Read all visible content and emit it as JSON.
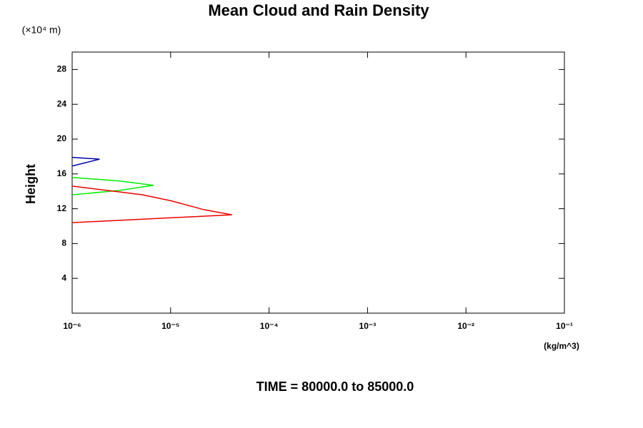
{
  "chart_data": {
    "type": "line",
    "title": "Mean Cloud and Rain Density",
    "y_unit": "(×10⁴ m)",
    "y_label": "Height",
    "x_label": "(kg/m^3)",
    "annotation": "TIME = 80000.0 to 85000.0",
    "xscale": "log",
    "xlim": [
      1e-06,
      0.1
    ],
    "xticks": [
      {
        "value": 1e-06,
        "label": "10⁻⁶"
      },
      {
        "value": 1e-05,
        "label": "10⁻⁵"
      },
      {
        "value": 0.0001,
        "label": "10⁻⁴"
      },
      {
        "value": 0.001,
        "label": "10⁻³"
      },
      {
        "value": 0.01,
        "label": "10⁻²"
      },
      {
        "value": 0.1,
        "label": "10⁻¹"
      }
    ],
    "ylim": [
      0,
      30
    ],
    "yticks": [
      4,
      8,
      12,
      16,
      20,
      24,
      28
    ],
    "series": [
      {
        "color": "#0000aa",
        "x": [
          1e-06,
          1.9e-06,
          1e-06
        ],
        "values": [
          17.9,
          17.7,
          16.9
        ]
      },
      {
        "color": "#00ee00",
        "x": [
          1e-06,
          3e-06,
          6.7e-06,
          3e-06,
          1e-06
        ],
        "values": [
          15.6,
          15.2,
          14.7,
          14.1,
          13.6
        ]
      },
      {
        "color": "#ee0000",
        "x": [
          1e-06,
          2.3e-06,
          5.2e-06,
          1.02e-05,
          2.16e-05,
          4.2e-05,
          1e-06
        ],
        "values": [
          14.6,
          14.1,
          13.6,
          12.9,
          11.9,
          11.3,
          10.4
        ]
      }
    ]
  }
}
